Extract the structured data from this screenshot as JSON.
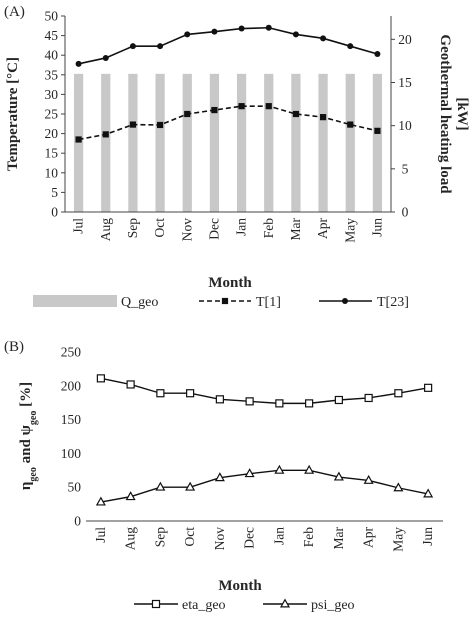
{
  "chart_data": [
    {
      "panel_label": "(A)",
      "type": "bar+line",
      "categories": [
        "Jul",
        "Aug",
        "Sep",
        "Oct",
        "Nov",
        "Dec",
        "Jan",
        "Feb",
        "Mar",
        "Apr",
        "May",
        "Jun"
      ],
      "xlabel": "Month",
      "ylabel": "Temperature [°C]",
      "ylabel_right_line1": "Geothermal heating load",
      "ylabel_right_line2": "[kW]",
      "ylim": [
        0,
        50
      ],
      "yticks": [
        0,
        5,
        10,
        15,
        20,
        25,
        30,
        35,
        40,
        45,
        50
      ],
      "ylim_right": [
        0,
        22.7
      ],
      "yticks_right": [
        0,
        5,
        10,
        15,
        20
      ],
      "bar_series": {
        "name": "Q_geo",
        "axis": "right",
        "color": "#c8c8c8",
        "values": [
          16,
          16,
          16,
          16,
          16,
          16,
          16,
          16,
          16,
          16,
          16,
          16
        ]
      },
      "series": [
        {
          "name": "T[1]",
          "style": "dashed",
          "marker": "square",
          "color": "#111111",
          "values": [
            18.5,
            19.8,
            22.3,
            22.2,
            25.0,
            26.0,
            27.0,
            27.0,
            25.0,
            24.2,
            22.3,
            20.7
          ]
        },
        {
          "name": "T[23]",
          "style": "solid",
          "marker": "circle",
          "color": "#111111",
          "values": [
            37.8,
            39.3,
            42.3,
            42.3,
            45.3,
            46.0,
            46.8,
            47.0,
            45.3,
            44.3,
            42.3,
            40.3
          ]
        }
      ],
      "legend_position": "bottom"
    },
    {
      "panel_label": "(B)",
      "type": "line",
      "categories": [
        "Jul",
        "Aug",
        "Sep",
        "Oct",
        "Nov",
        "Dec",
        "Jan",
        "Feb",
        "Mar",
        "Apr",
        "May",
        "Jun"
      ],
      "xlabel": "Month",
      "ylabel_parts": [
        "η",
        "geo",
        " and ψ",
        "geo",
        " [%]"
      ],
      "ylim": [
        0,
        250
      ],
      "yticks": [
        0,
        50,
        100,
        150,
        200,
        250
      ],
      "series": [
        {
          "name": "eta_geo",
          "style": "solid",
          "marker": "open-square",
          "color": "#111111",
          "values": [
            211,
            202,
            189,
            189,
            180,
            177,
            174,
            174,
            179,
            182,
            189,
            197
          ]
        },
        {
          "name": "psi_geo",
          "style": "solid",
          "marker": "open-triangle",
          "color": "#111111",
          "values": [
            28,
            36,
            50,
            50,
            64,
            70,
            75,
            75,
            65,
            60,
            49,
            40
          ]
        }
      ],
      "legend_position": "bottom"
    }
  ]
}
